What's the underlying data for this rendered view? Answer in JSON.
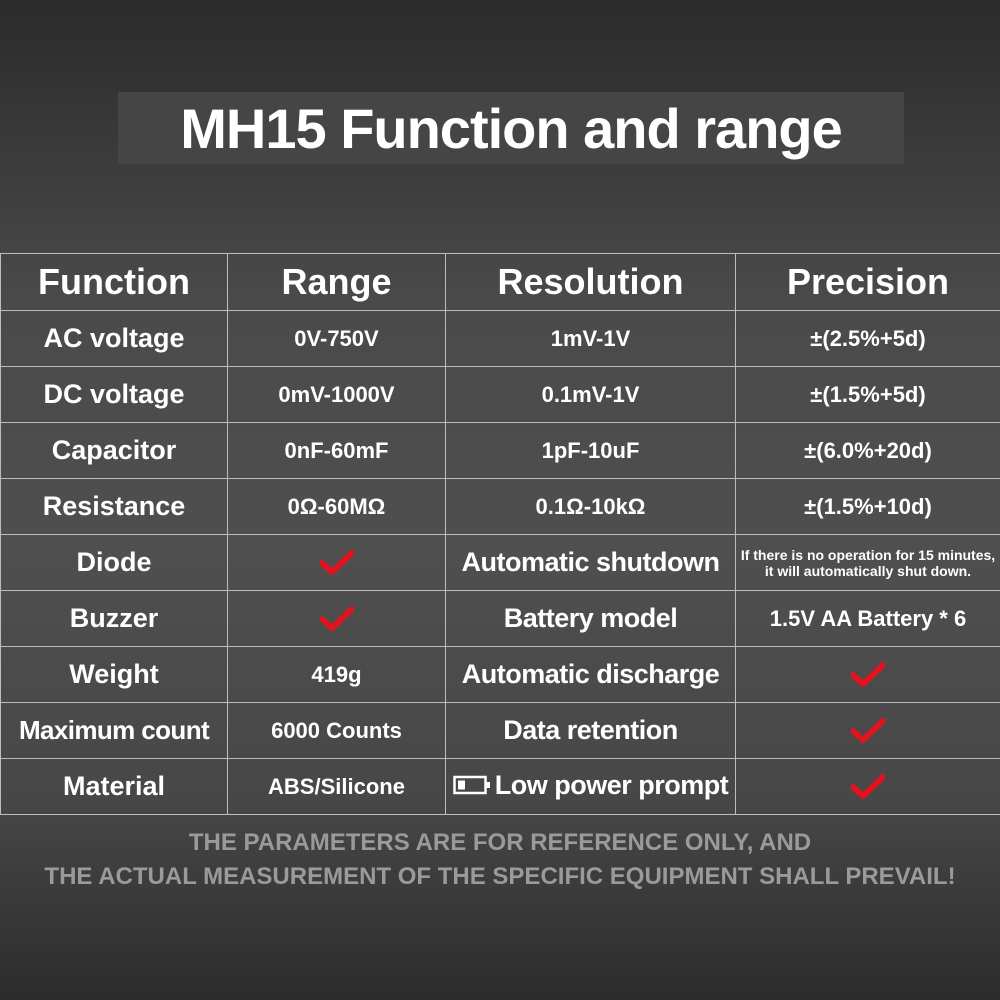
{
  "title": "MH15 Function and range",
  "table": {
    "headers": [
      "Function",
      "Range",
      "Resolution",
      "Precision"
    ],
    "rows": [
      {
        "function": "AC voltage",
        "range": "0V-750V",
        "resolution": "1mV-1V",
        "precision": "±(2.5%+5d)"
      },
      {
        "function": "DC voltage",
        "range": "0mV-1000V",
        "resolution": "0.1mV-1V",
        "precision": "±(1.5%+5d)"
      },
      {
        "function": "Capacitor",
        "range": "0nF-60mF",
        "resolution": "1pF-10uF",
        "precision": "±(6.0%+20d)"
      },
      {
        "function": "Resistance",
        "range": "0Ω-60MΩ",
        "resolution": "0.1Ω-10kΩ",
        "precision": "±(1.5%+10d)"
      },
      {
        "function": "Diode",
        "range_check": true,
        "resolution": "Automatic shutdown",
        "precision": "If there is no operation for 15 minutes, it will automatically shut down."
      },
      {
        "function": "Buzzer",
        "range_check": true,
        "resolution": "Battery model",
        "precision": "1.5V AA Battery * 6"
      },
      {
        "function": "Weight",
        "range": "419g",
        "resolution": "Automatic discharge",
        "precision_check": true
      },
      {
        "function": "Maximum count",
        "range": "6000 Counts",
        "resolution": "Data retention",
        "precision_check": true
      },
      {
        "function": "Material",
        "range": "ABS/Silicone",
        "resolution": "Low power prompt",
        "resolution_icon": "battery-low-icon",
        "precision_check": true
      }
    ]
  },
  "footer": {
    "line1": "THE PARAMETERS ARE FOR REFERENCE ONLY, AND",
    "line2": "THE ACTUAL MEASUREMENT OF THE SPECIFIC EQUIPMENT SHALL PREVAIL!"
  },
  "colors": {
    "check": "#e0141e",
    "grid": "#bdbdbd",
    "footer_text": "#9a9a9a"
  }
}
